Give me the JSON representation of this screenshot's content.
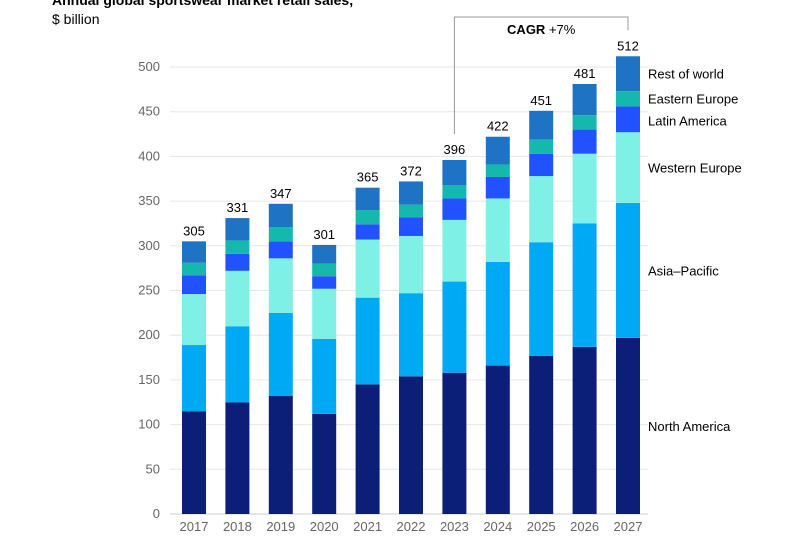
{
  "chart_data": {
    "type": "bar",
    "stacked": true,
    "title": "Annual global sportswear market retail sales,",
    "subtitle": "$ billion",
    "categories": [
      "2017",
      "2018",
      "2019",
      "2020",
      "2021",
      "2022",
      "2023",
      "2024",
      "2025",
      "2026",
      "2027"
    ],
    "ylim": [
      0,
      520
    ],
    "yticks": [
      0,
      50,
      100,
      150,
      200,
      250,
      300,
      350,
      400,
      450,
      500
    ],
    "totals": [
      305,
      331,
      347,
      301,
      365,
      372,
      396,
      422,
      451,
      481,
      512
    ],
    "series": [
      {
        "name": "North America",
        "color": "#0b1f78",
        "values": [
          115,
          125,
          132,
          112,
          145,
          154,
          158,
          166,
          177,
          187,
          197
        ]
      },
      {
        "name": "Asia–Pacific",
        "color": "#00a9f4",
        "values": [
          74,
          85,
          93,
          84,
          97,
          93,
          102,
          116,
          127,
          138,
          151
        ]
      },
      {
        "name": "Western Europe",
        "color": "#7ff0e6",
        "values": [
          57,
          62,
          61,
          56,
          65,
          64,
          69,
          71,
          74,
          78,
          79
        ]
      },
      {
        "name": "Latin America",
        "color": "#2251ff",
        "values": [
          21,
          19,
          19,
          14,
          17,
          21,
          24,
          24,
          25,
          27,
          29
        ]
      },
      {
        "name": "Eastern Europe",
        "color": "#14b8ac",
        "values": [
          14,
          15,
          16,
          14,
          16,
          14,
          15,
          14,
          16,
          16,
          17
        ]
      },
      {
        "name": "Rest of world",
        "color": "#1f73c4",
        "values": [
          24,
          25,
          26,
          21,
          25,
          26,
          28,
          31,
          32,
          35,
          39
        ]
      }
    ],
    "annotation": {
      "bold": "CAGR",
      "text": "+7%",
      "from": "2023",
      "to": "2027"
    }
  }
}
